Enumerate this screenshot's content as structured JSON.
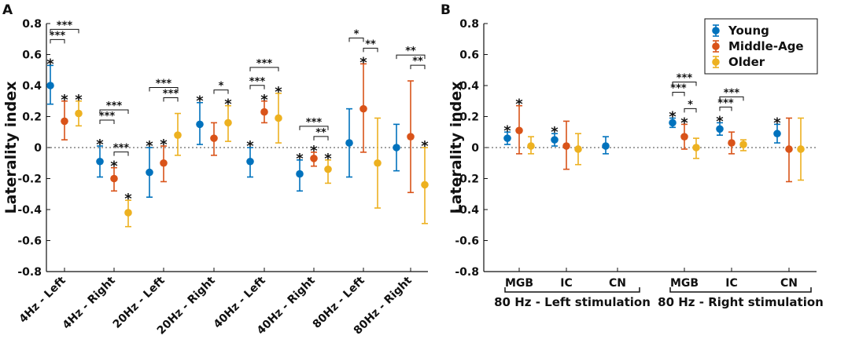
{
  "colors": {
    "young": "#0072BD",
    "middle": "#D95319",
    "older": "#EDB120",
    "axis": "#111111"
  },
  "chart_data": [
    {
      "panel": "A",
      "type": "scatter",
      "title": "",
      "xlabel": "",
      "ylabel": "Laterality index",
      "ylim": [
        -0.8,
        0.8
      ],
      "yticks": [
        0.8,
        0.6,
        0.4,
        0.2,
        0,
        -0.2,
        -0.4,
        -0.6,
        -0.8
      ],
      "ytick_labels": [
        "0.8",
        "0.6",
        "0.4",
        "0.2",
        "0",
        "-0.2",
        "-0.4",
        "-0.6",
        "-0.8"
      ],
      "zero_line": "dotted",
      "categories": [
        "4Hz - Left",
        "4Hz - Right",
        "20Hz - Left",
        "20Hz - Right",
        "40Hz - Left",
        "40Hz - Right",
        "80Hz - Left",
        "80Hz - Right"
      ],
      "series": [
        {
          "name": "Young",
          "values": [
            0.4,
            -0.09,
            -0.16,
            0.15,
            -0.09,
            -0.17,
            0.03,
            0.0
          ],
          "lower": [
            0.28,
            -0.19,
            -0.32,
            0.02,
            -0.19,
            -0.28,
            -0.19,
            -0.15
          ],
          "upper": [
            0.53,
            0.01,
            0.0,
            0.29,
            0.0,
            -0.08,
            0.25,
            0.15
          ],
          "star_labels": [
            "*",
            "*",
            "*",
            "*",
            "*",
            "*",
            "",
            ""
          ]
        },
        {
          "name": "Middle-Age",
          "values": [
            0.17,
            -0.2,
            -0.1,
            0.06,
            0.23,
            -0.07,
            0.25,
            0.07
          ],
          "lower": [
            0.05,
            -0.28,
            -0.22,
            -0.05,
            0.16,
            -0.12,
            -0.03,
            -0.29
          ],
          "upper": [
            0.3,
            -0.13,
            0.01,
            0.16,
            0.3,
            -0.03,
            0.54,
            0.43
          ],
          "star_labels": [
            "*",
            "*",
            "*",
            "",
            "*",
            "*",
            "*",
            ""
          ]
        },
        {
          "name": "Older",
          "values": [
            0.22,
            -0.42,
            0.08,
            0.16,
            0.19,
            -0.14,
            -0.1,
            -0.24
          ],
          "lower": [
            0.14,
            -0.51,
            -0.05,
            0.04,
            0.03,
            -0.23,
            -0.39,
            -0.49
          ],
          "upper": [
            0.3,
            -0.34,
            0.22,
            0.27,
            0.35,
            -0.08,
            0.19,
            0.0
          ],
          "star_labels": [
            "*",
            "*",
            "",
            "*",
            "*",
            "*",
            "",
            "*"
          ]
        }
      ],
      "comparisons": [
        {
          "category": 0,
          "from": "Young",
          "to": "Older",
          "label": "***",
          "level": 2
        },
        {
          "category": 0,
          "from": "Young",
          "to": "Middle-Age",
          "label": "***",
          "level": 1
        },
        {
          "category": 1,
          "from": "Young",
          "to": "Older",
          "label": "***",
          "level": 2
        },
        {
          "category": 1,
          "from": "Young",
          "to": "Middle-Age",
          "label": "***",
          "level": 1
        },
        {
          "category": 1,
          "from": "Middle-Age",
          "to": "Older",
          "label": "***",
          "level": 0
        },
        {
          "category": 2,
          "from": "Young",
          "to": "Older",
          "label": "***",
          "level": 1
        },
        {
          "category": 2,
          "from": "Middle-Age",
          "to": "Older",
          "label": "***",
          "level": 0
        },
        {
          "category": 3,
          "from": "Middle-Age",
          "to": "Older",
          "label": "*",
          "level": 0
        },
        {
          "category": 4,
          "from": "Young",
          "to": "Older",
          "label": "***",
          "level": 1
        },
        {
          "category": 4,
          "from": "Young",
          "to": "Middle-Age",
          "label": "***",
          "level": 0
        },
        {
          "category": 5,
          "from": "Young",
          "to": "Older",
          "label": "***",
          "level": 1
        },
        {
          "category": 5,
          "from": "Middle-Age",
          "to": "Older",
          "label": "**",
          "level": 0
        },
        {
          "category": 6,
          "from": "Young",
          "to": "Middle-Age",
          "label": "*",
          "level": 1
        },
        {
          "category": 6,
          "from": "Middle-Age",
          "to": "Older",
          "label": "**",
          "level": 0
        },
        {
          "category": 7,
          "from": "Young",
          "to": "Older",
          "label": "**",
          "level": 1
        },
        {
          "category": 7,
          "from": "Middle-Age",
          "to": "Older",
          "label": "**",
          "level": 0
        }
      ]
    },
    {
      "panel": "B",
      "type": "scatter",
      "title": "",
      "xlabel": "",
      "ylabel": "Laterality index",
      "ylim": [
        -0.8,
        0.8
      ],
      "yticks": [
        0.8,
        0.6,
        0.4,
        0.2,
        0,
        -0.2,
        -0.4,
        -0.6,
        -0.8
      ],
      "ytick_labels": [
        "0.8",
        "0.6",
        "0.4",
        "0.2",
        "0",
        "-0.2",
        "-0.4",
        "-0.6",
        "-0.8"
      ],
      "zero_line": "dotted",
      "categories": [
        "MGB",
        "IC",
        "CN",
        "MGB",
        "IC",
        "CN"
      ],
      "groups": [
        {
          "label": "80 Hz - Left stimulation",
          "categories": [
            0,
            1,
            2
          ]
        },
        {
          "label": "80 Hz - Right stimulation",
          "categories": [
            3,
            4,
            5
          ]
        }
      ],
      "legend": {
        "position": "top-right",
        "entries": [
          "Young",
          "Middle-Age",
          "Older"
        ]
      },
      "series": [
        {
          "name": "Young",
          "values": [
            0.06,
            0.05,
            0.01,
            0.16,
            0.12,
            0.09
          ],
          "lower": [
            0.02,
            0.01,
            -0.04,
            0.13,
            0.08,
            0.03
          ],
          "upper": [
            0.1,
            0.09,
            0.07,
            0.19,
            0.16,
            0.15
          ],
          "star_labels": [
            "*",
            "*",
            "",
            "*",
            "*",
            "*"
          ]
        },
        {
          "name": "Middle-Age",
          "values": [
            0.11,
            0.01,
            null,
            0.07,
            0.03,
            -0.01
          ],
          "lower": [
            -0.04,
            -0.14,
            null,
            -0.01,
            -0.04,
            -0.22
          ],
          "upper": [
            0.27,
            0.17,
            null,
            0.15,
            0.1,
            0.19
          ],
          "star_labels": [
            "*",
            "",
            "",
            "*",
            "",
            ""
          ]
        },
        {
          "name": "Older",
          "values": [
            0.01,
            -0.01,
            null,
            0.0,
            0.02,
            -0.01
          ],
          "lower": [
            -0.04,
            -0.11,
            null,
            -0.07,
            -0.02,
            -0.21
          ],
          "upper": [
            0.07,
            0.09,
            null,
            0.06,
            0.05,
            0.19
          ],
          "star_labels": [
            "",
            "",
            "",
            "",
            "",
            ""
          ]
        }
      ],
      "comparisons": [
        {
          "category": 3,
          "from": "Young",
          "to": "Older",
          "label": "***",
          "level": 2
        },
        {
          "category": 3,
          "from": "Young",
          "to": "Middle-Age",
          "label": "***",
          "level": 1
        },
        {
          "category": 3,
          "from": "Middle-Age",
          "to": "Older",
          "label": "*",
          "level": 0
        },
        {
          "category": 4,
          "from": "Young",
          "to": "Older",
          "label": "***",
          "level": 1
        },
        {
          "category": 4,
          "from": "Young",
          "to": "Middle-Age",
          "label": "***",
          "level": 0
        }
      ]
    }
  ]
}
